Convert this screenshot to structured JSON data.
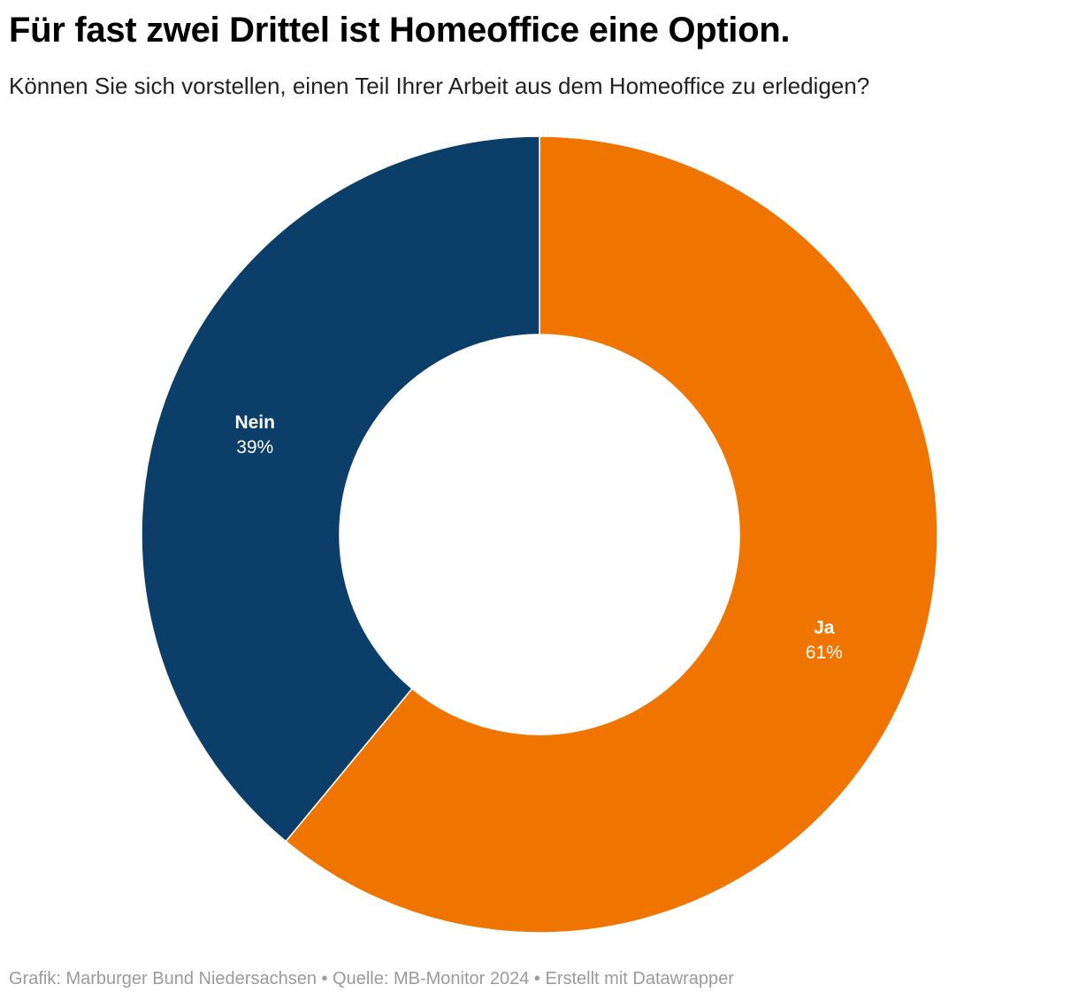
{
  "header": {
    "title": "Für fast zwei Drittel ist Homeoffice eine Option.",
    "subtitle": "Können Sie sich vorstellen, einen Teil Ihrer Arbeit aus dem Homeoffice zu erledigen?"
  },
  "chart_data": {
    "type": "pie",
    "subtype": "donut",
    "title": "Für fast zwei Drittel ist Homeoffice eine Option.",
    "subtitle": "Können Sie sich vorstellen, einen Teil Ihrer Arbeit aus dem Homeoffice zu erledigen?",
    "slices": [
      {
        "name": "Ja",
        "value": 61,
        "label": "61%",
        "color": "#F07400"
      },
      {
        "name": "Nein",
        "value": 39,
        "label": "39%",
        "color": "#0B3F69"
      }
    ],
    "start_angle": "12 o'clock",
    "direction": "clockwise",
    "legend": "none"
  },
  "footer": {
    "credit": "Grafik: Marburger Bund Niedersachsen • Quelle: MB-Monitor 2024 • Erstellt mit Datawrapper"
  }
}
